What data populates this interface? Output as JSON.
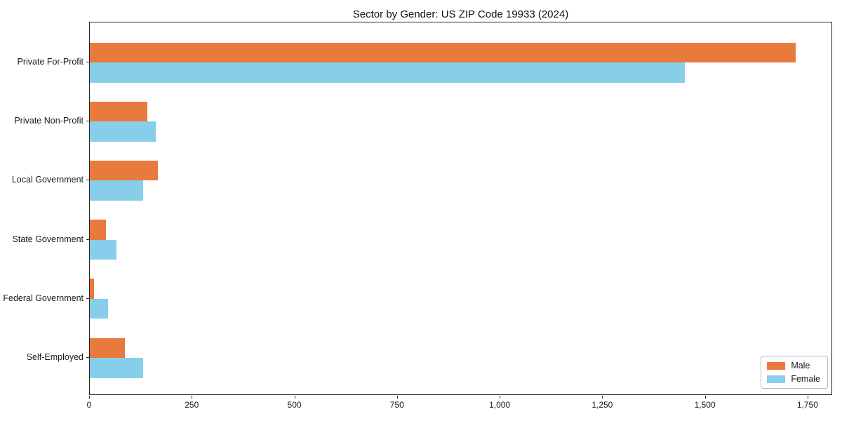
{
  "chart_data": {
    "type": "bar",
    "orientation": "horizontal",
    "title": "Sector by Gender: US ZIP Code 19933 (2024)",
    "categories": [
      "Private For-Profit",
      "Private Non-Profit",
      "Local Government",
      "State Government",
      "Federal Government",
      "Self-Employed"
    ],
    "series": [
      {
        "name": "Male",
        "color": "#e97a3d",
        "values": [
          1720,
          140,
          165,
          40,
          10,
          85
        ]
      },
      {
        "name": "Female",
        "color": "#87ceeb",
        "values": [
          1450,
          160,
          130,
          65,
          45,
          130
        ]
      }
    ],
    "xlabel": "",
    "ylabel": "",
    "xlim": [
      0,
      1810
    ],
    "xticks": [
      0,
      250,
      500,
      750,
      1000,
      1250,
      1500,
      1750
    ],
    "xtick_labels": [
      "0",
      "250",
      "500",
      "750",
      "1,000",
      "1,250",
      "1,500",
      "1,750"
    ],
    "grid": false,
    "legend_position": "lower right"
  },
  "colors": {
    "male": "#e97a3d",
    "female": "#87ceeb",
    "spine": "#262626",
    "background": "#ffffff",
    "text": "#1a1a1a"
  }
}
